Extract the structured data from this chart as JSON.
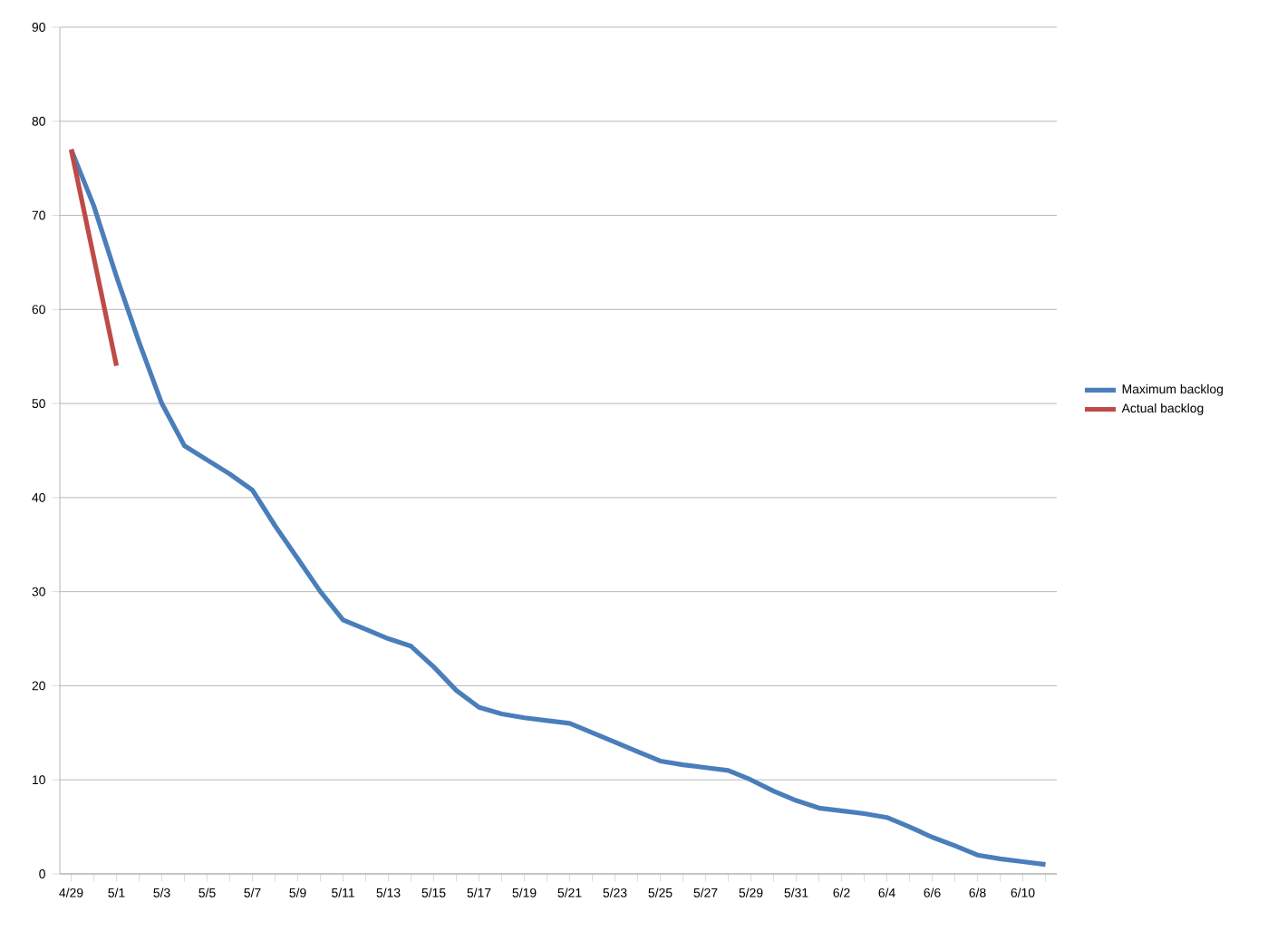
{
  "chart_data": {
    "type": "line",
    "categories": [
      "4/29",
      null,
      "5/1",
      null,
      "5/3",
      null,
      "5/5",
      null,
      "5/7",
      null,
      "5/9",
      null,
      "5/11",
      null,
      "5/13",
      null,
      "5/15",
      null,
      "5/17",
      null,
      "5/19",
      null,
      "5/21",
      null,
      "5/23",
      null,
      "5/25",
      null,
      "5/27",
      null,
      "5/29",
      null,
      "5/31",
      null,
      "6/2",
      null,
      "6/4",
      null,
      "6/6",
      null,
      "6/8",
      null,
      "6/10",
      null
    ],
    "series": [
      {
        "name": "Maximum backlog",
        "color": "#4a7ebb",
        "values": [
          77,
          71,
          63.5,
          56.5,
          50,
          45.5,
          44,
          42.5,
          40.8,
          37,
          33.5,
          30,
          27,
          26,
          25,
          24.2,
          22,
          19.5,
          17.7,
          17,
          16.6,
          16.3,
          16,
          15,
          14,
          13,
          12,
          11.6,
          11.3,
          11,
          10,
          8.8,
          7.8,
          7,
          6.7,
          6.4,
          6,
          5,
          3.9,
          3,
          2,
          1.6,
          1.3,
          1
        ]
      },
      {
        "name": "Actual backlog",
        "color": "#be4b48",
        "values": [
          77,
          65.5,
          54,
          null,
          null,
          null,
          null,
          null,
          null,
          null,
          null,
          null,
          null,
          null,
          null,
          null,
          null,
          null,
          null,
          null,
          null,
          null,
          null,
          null,
          null,
          null,
          null,
          null,
          null,
          null,
          null,
          null,
          null,
          null,
          null,
          null,
          null,
          null,
          null,
          null,
          null,
          null,
          null,
          null
        ]
      }
    ],
    "ylim": [
      0,
      90
    ],
    "yticks": [
      0,
      10,
      20,
      30,
      40,
      50,
      60,
      70,
      80,
      90
    ],
    "grid": "y",
    "legend": "right",
    "marker": "none",
    "line_style": "solid"
  }
}
